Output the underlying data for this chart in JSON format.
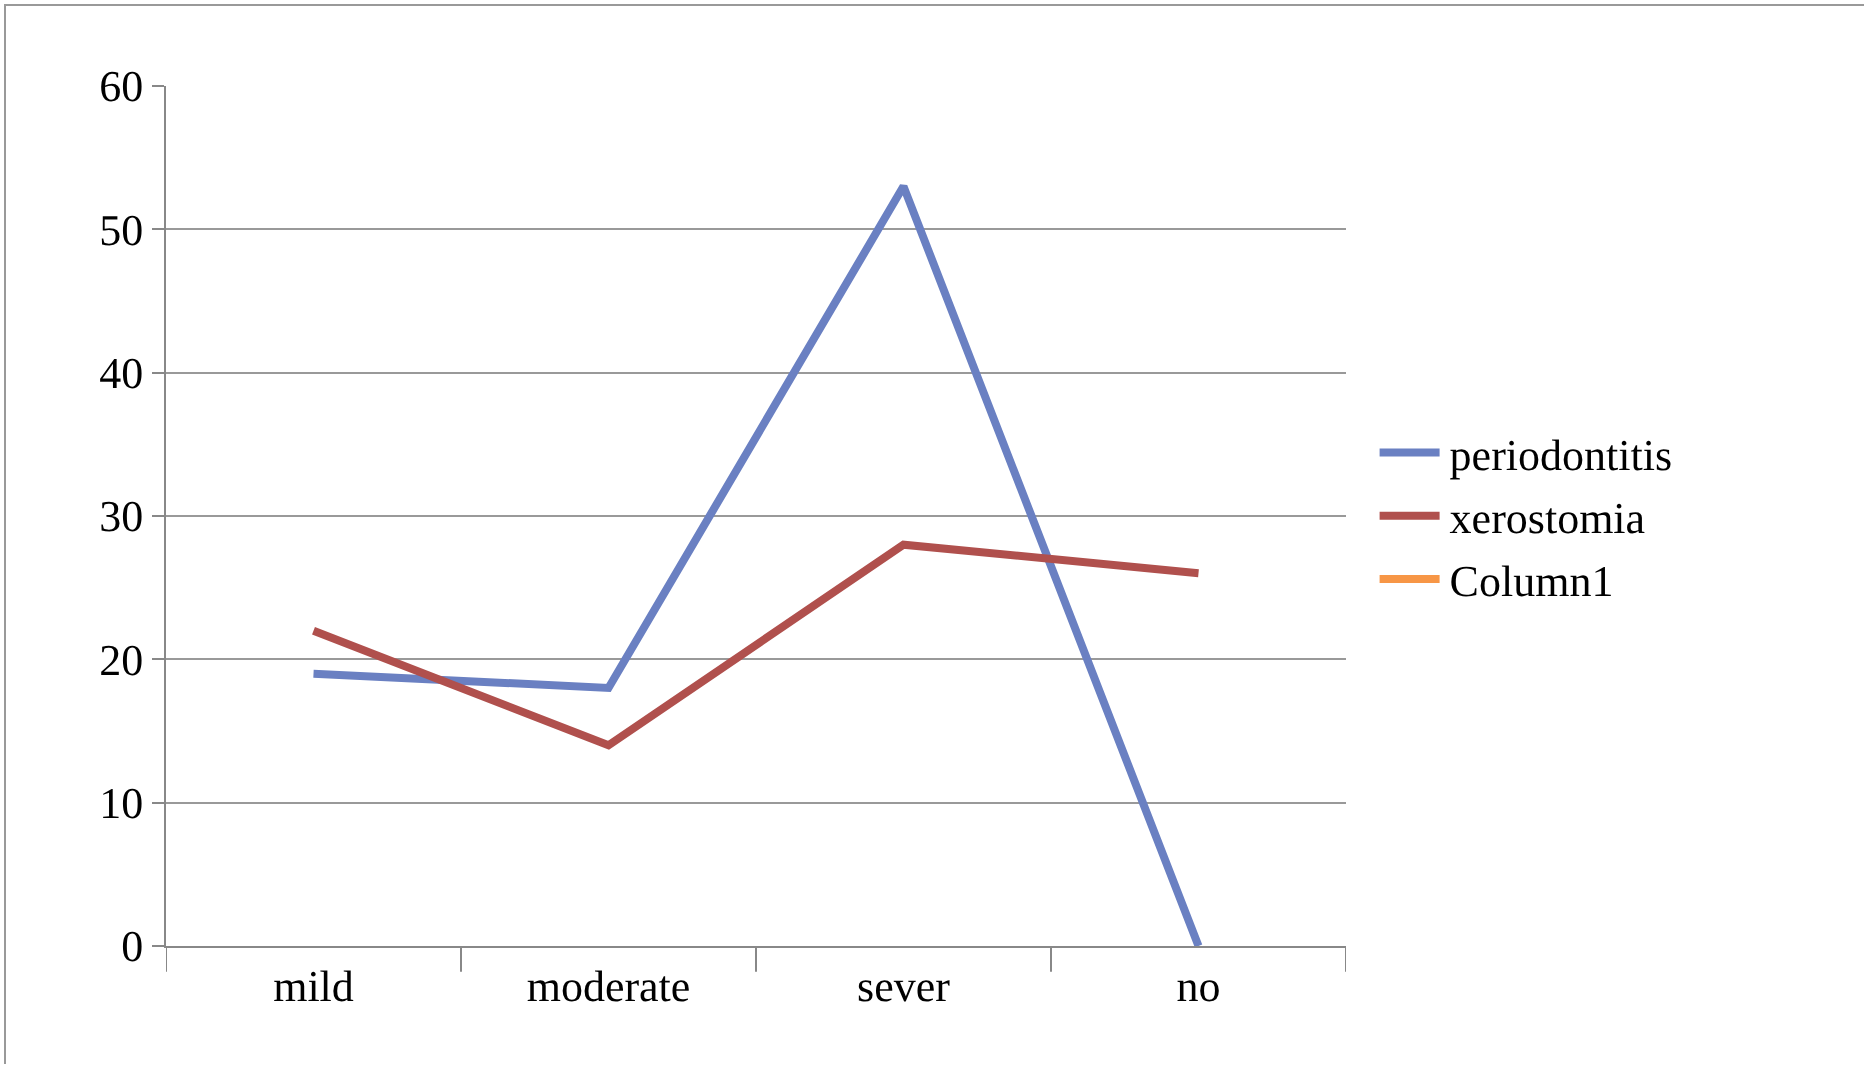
{
  "chart_data": {
    "type": "line",
    "categories": [
      "mild",
      "moderate",
      "sever",
      "no"
    ],
    "series": [
      {
        "name": "periodontitis",
        "color": "#6a80c2",
        "values": [
          19,
          18,
          53,
          0
        ]
      },
      {
        "name": "xerostomia",
        "color": "#b0504d",
        "values": [
          22,
          14,
          28,
          26
        ]
      },
      {
        "name": "Column1",
        "color": "#f79646",
        "values": [
          null,
          null,
          null,
          null
        ]
      }
    ],
    "ylim": [
      0,
      60
    ],
    "yticks": [
      0,
      10,
      20,
      30,
      40,
      50,
      60
    ],
    "grid": "y",
    "legend": "right",
    "marker": "none",
    "line_style": "solid"
  }
}
